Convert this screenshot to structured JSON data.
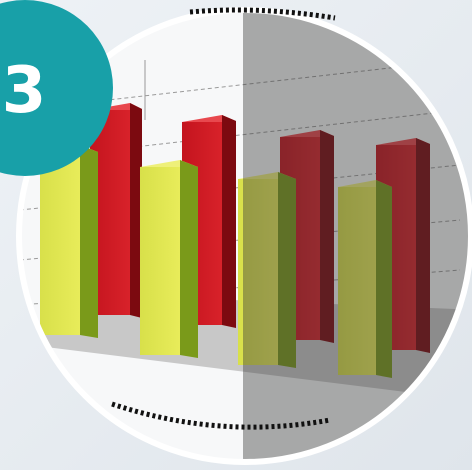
{
  "badge": {
    "label": "3"
  }
}
